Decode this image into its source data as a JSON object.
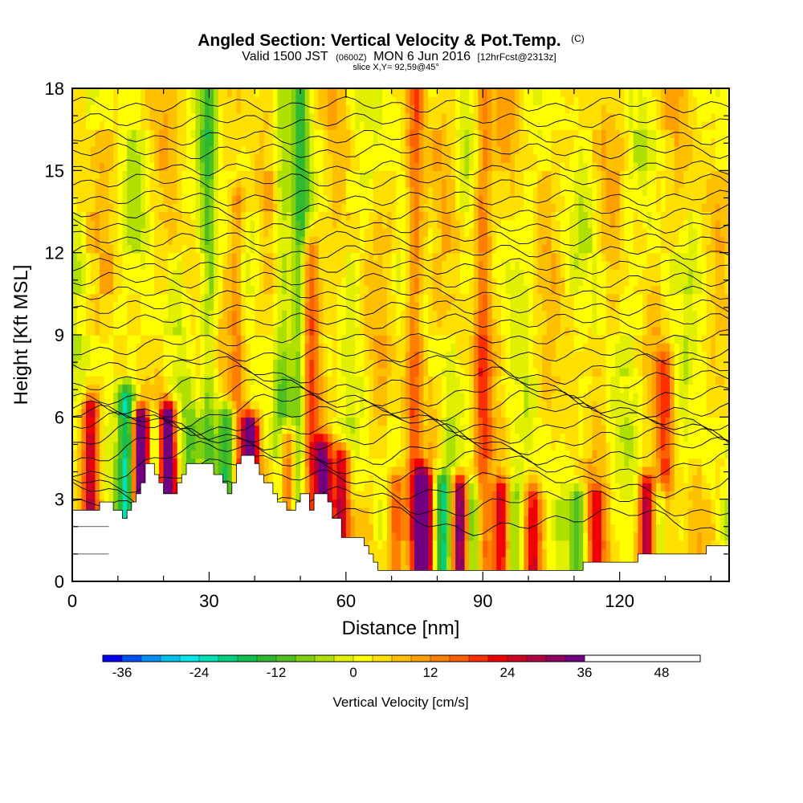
{
  "chart_data": {
    "type": "heatmap",
    "title": "Angled Section: Vertical Velocity & Pot.Temp.",
    "title_units": "(C)",
    "subtitle_main": "Valid 1500 JST",
    "subtitle_z": "(0600Z)",
    "subtitle_date": "MON 6 Jun 2016",
    "subtitle_fcst": "[12hrFcst@2313z]",
    "slice_label": "slice X,Y= 92,59@45°",
    "xlabel": "Distance [nm]",
    "ylabel": "Height [Kft MSL]",
    "xlim": [
      0,
      144
    ],
    "ylim": [
      0,
      18
    ],
    "x_ticks": [
      0,
      30,
      60,
      90,
      120
    ],
    "x_tick_labels": [
      "0",
      "30",
      "60",
      "90",
      "120"
    ],
    "y_ticks": [
      0,
      3,
      6,
      9,
      12,
      15,
      18
    ],
    "y_tick_labels": [
      "0",
      "3",
      "6",
      "9",
      "12",
      "15",
      "18"
    ],
    "colorbar": {
      "label": "Vertical Velocity [cm/s]",
      "min": -39,
      "max": 54,
      "step": 3,
      "tick_values": [
        -36,
        -24,
        -12,
        0,
        12,
        24,
        36,
        48
      ],
      "tick_labels": [
        "-36",
        "-24",
        "-12",
        "0",
        "12",
        "24",
        "36",
        "48"
      ],
      "colors": [
        "#0000f5",
        "#0050f5",
        "#0090f5",
        "#00c0f0",
        "#00e8e8",
        "#00e0b0",
        "#00d080",
        "#10c050",
        "#30b830",
        "#50c020",
        "#80d010",
        "#b0e000",
        "#e0f000",
        "#ffff00",
        "#ffe000",
        "#ffc000",
        "#ffa000",
        "#ff8000",
        "#ff6000",
        "#ff3000",
        "#f00000",
        "#d00020",
        "#b00040",
        "#900060",
        "#700080"
      ]
    },
    "terrain_profile": [
      [
        0,
        2.6
      ],
      [
        2,
        2.6
      ],
      [
        4,
        2.6
      ],
      [
        6,
        2.9
      ],
      [
        8,
        2.9
      ],
      [
        9,
        2.6
      ],
      [
        10,
        2.6
      ],
      [
        11,
        2.3
      ],
      [
        12,
        2.6
      ],
      [
        13,
        2.9
      ],
      [
        14,
        3.2
      ],
      [
        15,
        3.6
      ],
      [
        16,
        4.3
      ],
      [
        17,
        4.3
      ],
      [
        18,
        3.9
      ],
      [
        19,
        3.6
      ],
      [
        20,
        3.2
      ],
      [
        21,
        3.2
      ],
      [
        22,
        3.2
      ],
      [
        23,
        3.6
      ],
      [
        24,
        3.9
      ],
      [
        25,
        4.3
      ],
      [
        27,
        4.3
      ],
      [
        29,
        4.3
      ],
      [
        30,
        4.3
      ],
      [
        31,
        3.9
      ],
      [
        32,
        3.9
      ],
      [
        33,
        3.6
      ],
      [
        34,
        3.2
      ],
      [
        35,
        3.6
      ],
      [
        36,
        4.3
      ],
      [
        37,
        4.6
      ],
      [
        38,
        4.6
      ],
      [
        39,
        4.6
      ],
      [
        40,
        4.3
      ],
      [
        41,
        3.9
      ],
      [
        42,
        3.6
      ],
      [
        43,
        3.6
      ],
      [
        44,
        3.2
      ],
      [
        45,
        2.9
      ],
      [
        46,
        2.9
      ],
      [
        47,
        2.6
      ],
      [
        48,
        2.6
      ],
      [
        49,
        2.9
      ],
      [
        50,
        3.2
      ],
      [
        51,
        3.2
      ],
      [
        52,
        2.6
      ],
      [
        53,
        3.2
      ],
      [
        55,
        3.2
      ],
      [
        56,
        2.9
      ],
      [
        57,
        2.3
      ],
      [
        58,
        2.3
      ],
      [
        59,
        1.6
      ],
      [
        61,
        1.6
      ],
      [
        63,
        1.6
      ],
      [
        64,
        1.3
      ],
      [
        65,
        1.0
      ],
      [
        66,
        0.7
      ],
      [
        67,
        0.4
      ],
      [
        70,
        0.4
      ],
      [
        80,
        0.4
      ],
      [
        90,
        0.4
      ],
      [
        100,
        0.4
      ],
      [
        111,
        0.4
      ],
      [
        112,
        0.7
      ],
      [
        120,
        0.7
      ],
      [
        123,
        0.7
      ],
      [
        124,
        1.0
      ],
      [
        130,
        1.0
      ],
      [
        138,
        1.0
      ],
      [
        139,
        1.3
      ],
      [
        144,
        1.3
      ]
    ],
    "theta_contour_heights": [
      2.2,
      2.9,
      3.6,
      4.2,
      4.7,
      5.2,
      5.6,
      6.0,
      6.4,
      6.8,
      7.3,
      7.8,
      8.3,
      8.9,
      9.5,
      10.0,
      10.5,
      11.0,
      11.5,
      12.0,
      12.5,
      13.0,
      13.5,
      14.0,
      14.6,
      15.1,
      15.7,
      16.2,
      16.8,
      17.4
    ],
    "updraft_columns": [
      {
        "x": 4,
        "top": 6.2,
        "peak": 22
      },
      {
        "x": 15,
        "top": 5.8,
        "peak": 40
      },
      {
        "x": 21,
        "top": 6.0,
        "peak": 42
      },
      {
        "x": 39,
        "top": 5.6,
        "peak": 36
      },
      {
        "x": 47,
        "top": 5.2,
        "peak": 24
      },
      {
        "x": 55,
        "top": 4.8,
        "peak": 26
      },
      {
        "x": 59,
        "top": 4.5,
        "peak": 24
      },
      {
        "x": 71,
        "top": 3.6,
        "peak": 18
      },
      {
        "x": 77,
        "top": 3.5,
        "peak": 38
      },
      {
        "x": 85,
        "top": 3.4,
        "peak": 36
      },
      {
        "x": 94,
        "top": 3.2,
        "peak": 22
      },
      {
        "x": 101,
        "top": 3.0,
        "peak": 18
      },
      {
        "x": 115,
        "top": 3.0,
        "peak": 16
      },
      {
        "x": 126,
        "top": 3.4,
        "peak": 26
      },
      {
        "x": 130,
        "top": 8.0,
        "peak": 14
      },
      {
        "x": 75,
        "top": 18.0,
        "peak": 14
      },
      {
        "x": 52,
        "top": 12.0,
        "peak": 14
      },
      {
        "x": 36,
        "top": 14.0,
        "peak": 12
      },
      {
        "x": 90,
        "top": 18.0,
        "peak": 12
      }
    ],
    "downdraft_columns": [
      {
        "x": 12,
        "top": 6.6,
        "peak": -22
      },
      {
        "x": 18,
        "top": 5.8,
        "peak": -16
      },
      {
        "x": 34,
        "top": 6.0,
        "peak": -22
      },
      {
        "x": 26,
        "top": 5.6,
        "peak": -12
      },
      {
        "x": 81,
        "top": 3.4,
        "peak": -22
      },
      {
        "x": 88,
        "top": 3.3,
        "peak": -14
      },
      {
        "x": 111,
        "top": 3.0,
        "peak": -14
      },
      {
        "x": 129,
        "top": 3.0,
        "peak": -16
      },
      {
        "x": 97,
        "top": 3.0,
        "peak": -10
      },
      {
        "x": 46,
        "top": 18.0,
        "peak": -10
      },
      {
        "x": 30,
        "top": 18.0,
        "peak": -14
      },
      {
        "x": 50,
        "top": 18.0,
        "peak": -12
      }
    ]
  }
}
